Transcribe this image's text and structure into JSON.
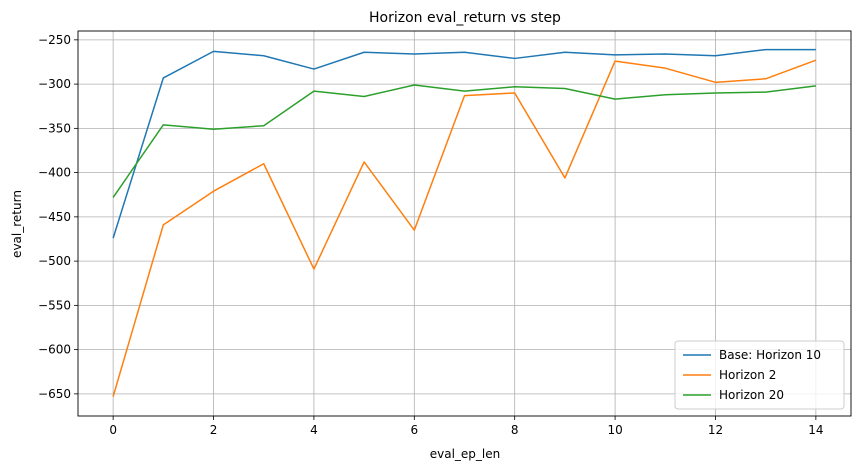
{
  "chart_data": {
    "type": "line",
    "title": "Horizon eval_return vs step",
    "xlabel": "eval_ep_len",
    "ylabel": "eval_return",
    "xlim": [
      -0.7,
      14.7
    ],
    "ylim": [
      -675,
      -240
    ],
    "xticks": [
      0,
      2,
      4,
      6,
      8,
      10,
      12,
      14
    ],
    "yticks": [
      -650,
      -600,
      -550,
      -500,
      -450,
      -400,
      -350,
      -300,
      -250
    ],
    "xtick_labels": [
      "0",
      "2",
      "4",
      "6",
      "8",
      "10",
      "12",
      "14"
    ],
    "ytick_labels": [
      "−650",
      "−600",
      "−550",
      "−500",
      "−450",
      "−400",
      "−350",
      "−300",
      "−250"
    ],
    "grid": true,
    "legend_position": "lower-right",
    "x": [
      0,
      1,
      2,
      3,
      4,
      5,
      6,
      7,
      8,
      9,
      10,
      11,
      12,
      13,
      14
    ],
    "series": [
      {
        "name": "Base: Horizon 10",
        "color": "#1f77b4",
        "values": [
          -474,
          -293,
          -263,
          -268,
          -283,
          -264,
          -266,
          -264,
          -271,
          -264,
          -267,
          -266,
          -268,
          -261,
          -261
        ]
      },
      {
        "name": "Horizon 2",
        "color": "#ff7f0e",
        "values": [
          -653,
          -459,
          -421,
          -390,
          -509,
          -388,
          -465,
          -313,
          -310,
          -406,
          -274,
          -282,
          -298,
          -294,
          -273
        ]
      },
      {
        "name": "Horizon 20",
        "color": "#2ca02c",
        "values": [
          -428,
          -346,
          -351,
          -347,
          -308,
          -314,
          -301,
          -308,
          -303,
          -305,
          -317,
          -312,
          -310,
          -309,
          -302
        ]
      }
    ]
  }
}
